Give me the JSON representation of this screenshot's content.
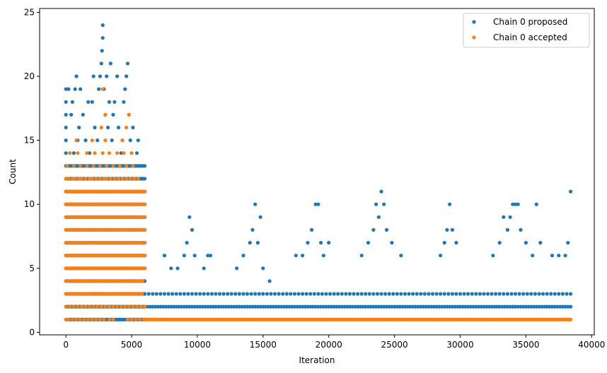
{
  "chart_data": {
    "type": "scatter",
    "xlabel": "Iteration",
    "ylabel": "Count",
    "xlim": [
      -2000,
      40200
    ],
    "ylim": [
      -0.2,
      25.3
    ],
    "xticks": [
      0,
      5000,
      10000,
      15000,
      20000,
      25000,
      30000,
      35000,
      40000
    ],
    "yticks": [
      0,
      5,
      10,
      15,
      20,
      25
    ],
    "legend_position": "top-right",
    "grid": false,
    "series": [
      {
        "name": "Chain 0 proposed",
        "color": "#1f77b4",
        "bands": [
          {
            "x_range": [
              0,
              6000
            ],
            "y_values": [
              1,
              2,
              3,
              4,
              5,
              6,
              7,
              8,
              9,
              10,
              11,
              12,
              13
            ],
            "step": 100
          },
          {
            "x_range": [
              6000,
              38400
            ],
            "y_values": [
              1,
              2
            ],
            "step": 200
          },
          {
            "x_range": [
              6000,
              38400
            ],
            "y_values": [
              3
            ],
            "step": 300
          }
        ],
        "points": [
          [
            0,
            14
          ],
          [
            0,
            15
          ],
          [
            0,
            16
          ],
          [
            0,
            17
          ],
          [
            0,
            18
          ],
          [
            0,
            19
          ],
          [
            200,
            19
          ],
          [
            400,
            17
          ],
          [
            500,
            18
          ],
          [
            600,
            14
          ],
          [
            700,
            19
          ],
          [
            800,
            20
          ],
          [
            900,
            15
          ],
          [
            1000,
            16
          ],
          [
            1100,
            19
          ],
          [
            1200,
            13
          ],
          [
            1300,
            17
          ],
          [
            1500,
            15
          ],
          [
            1700,
            18
          ],
          [
            1800,
            14
          ],
          [
            2000,
            18
          ],
          [
            2100,
            20
          ],
          [
            2200,
            16
          ],
          [
            2400,
            15
          ],
          [
            2500,
            19
          ],
          [
            2600,
            20
          ],
          [
            2700,
            21
          ],
          [
            2750,
            22
          ],
          [
            2800,
            24
          ],
          [
            2800,
            23
          ],
          [
            2900,
            19
          ],
          [
            3000,
            17
          ],
          [
            3100,
            20
          ],
          [
            3200,
            16
          ],
          [
            3300,
            18
          ],
          [
            3400,
            21
          ],
          [
            3500,
            15
          ],
          [
            3600,
            17
          ],
          [
            3700,
            18
          ],
          [
            3900,
            20
          ],
          [
            4000,
            16
          ],
          [
            4200,
            14
          ],
          [
            4300,
            15
          ],
          [
            4400,
            18
          ],
          [
            4500,
            19
          ],
          [
            4600,
            20
          ],
          [
            4700,
            21
          ],
          [
            4800,
            17
          ],
          [
            4900,
            15
          ],
          [
            5100,
            16
          ],
          [
            5400,
            14
          ],
          [
            5500,
            15
          ],
          [
            5700,
            12
          ],
          [
            5900,
            13
          ],
          [
            7500,
            6
          ],
          [
            8000,
            5
          ],
          [
            8500,
            5
          ],
          [
            9000,
            6
          ],
          [
            9200,
            7
          ],
          [
            9400,
            9
          ],
          [
            9600,
            8
          ],
          [
            9800,
            6
          ],
          [
            10500,
            5
          ],
          [
            10800,
            6
          ],
          [
            11000,
            6
          ],
          [
            13000,
            5
          ],
          [
            13500,
            6
          ],
          [
            14000,
            7
          ],
          [
            14200,
            8
          ],
          [
            14400,
            10
          ],
          [
            14600,
            7
          ],
          [
            14800,
            9
          ],
          [
            15000,
            5
          ],
          [
            15500,
            4
          ],
          [
            17500,
            6
          ],
          [
            18000,
            6
          ],
          [
            18400,
            7
          ],
          [
            18700,
            8
          ],
          [
            19000,
            10
          ],
          [
            19200,
            10
          ],
          [
            19400,
            7
          ],
          [
            19600,
            6
          ],
          [
            20000,
            7
          ],
          [
            22500,
            6
          ],
          [
            23000,
            7
          ],
          [
            23400,
            8
          ],
          [
            23600,
            10
          ],
          [
            23800,
            9
          ],
          [
            24000,
            11
          ],
          [
            24200,
            10
          ],
          [
            24400,
            8
          ],
          [
            24800,
            7
          ],
          [
            25500,
            6
          ],
          [
            28500,
            6
          ],
          [
            28800,
            7
          ],
          [
            29000,
            8
          ],
          [
            29200,
            10
          ],
          [
            29400,
            8
          ],
          [
            29700,
            7
          ],
          [
            32500,
            6
          ],
          [
            33000,
            7
          ],
          [
            33300,
            9
          ],
          [
            33600,
            8
          ],
          [
            33800,
            9
          ],
          [
            34000,
            10
          ],
          [
            34200,
            10
          ],
          [
            34400,
            10
          ],
          [
            34600,
            8
          ],
          [
            35000,
            7
          ],
          [
            35500,
            6
          ],
          [
            35800,
            10
          ],
          [
            36100,
            7
          ],
          [
            37000,
            6
          ],
          [
            37500,
            6
          ],
          [
            38000,
            6
          ],
          [
            38200,
            7
          ],
          [
            38400,
            11
          ]
        ]
      },
      {
        "name": "Chain 0 accepted",
        "color": "#ff7f0e",
        "bands": [
          {
            "x_range": [
              0,
              6000
            ],
            "y_values": [
              5,
              6,
              7,
              8,
              9,
              10,
              11
            ],
            "step": 100
          },
          {
            "x_range": [
              6000,
              38400
            ],
            "y_values": [
              1
            ],
            "step": 150
          }
        ],
        "points": [
          [
            0,
            1
          ],
          [
            200,
            1
          ],
          [
            500,
            1
          ],
          [
            800,
            1
          ],
          [
            1100,
            1
          ],
          [
            1400,
            1
          ],
          [
            1700,
            1
          ],
          [
            2000,
            1
          ],
          [
            2300,
            1
          ],
          [
            2600,
            1
          ],
          [
            2900,
            1
          ],
          [
            3300,
            1
          ],
          [
            3600,
            1
          ],
          [
            4700,
            1
          ],
          [
            5000,
            1
          ],
          [
            5300,
            1
          ],
          [
            5600,
            1
          ],
          [
            5900,
            1
          ],
          [
            0,
            2
          ],
          [
            300,
            2
          ],
          [
            600,
            2
          ],
          [
            900,
            2
          ],
          [
            1200,
            2
          ],
          [
            1500,
            2
          ],
          [
            1800,
            2
          ],
          [
            2100,
            2
          ],
          [
            2400,
            2
          ],
          [
            2700,
            2
          ],
          [
            3000,
            2
          ],
          [
            3300,
            2
          ],
          [
            3600,
            2
          ],
          [
            3900,
            2
          ],
          [
            4200,
            2
          ],
          [
            4500,
            2
          ],
          [
            4800,
            2
          ],
          [
            5100,
            2
          ],
          [
            5400,
            2
          ],
          [
            5700,
            2
          ],
          [
            6000,
            2
          ],
          [
            0,
            3
          ],
          [
            200,
            3
          ],
          [
            400,
            3
          ],
          [
            600,
            3
          ],
          [
            800,
            3
          ],
          [
            1000,
            3
          ],
          [
            1200,
            3
          ],
          [
            1400,
            3
          ],
          [
            1600,
            3
          ],
          [
            1800,
            3
          ],
          [
            2000,
            3
          ],
          [
            2200,
            3
          ],
          [
            2400,
            3
          ],
          [
            2600,
            3
          ],
          [
            2800,
            3
          ],
          [
            3000,
            3
          ],
          [
            3200,
            3
          ],
          [
            3400,
            3
          ],
          [
            3600,
            3
          ],
          [
            3800,
            3
          ],
          [
            4000,
            3
          ],
          [
            4200,
            3
          ],
          [
            4400,
            3
          ],
          [
            4600,
            3
          ],
          [
            4800,
            3
          ],
          [
            5000,
            3
          ],
          [
            5200,
            3
          ],
          [
            5400,
            3
          ],
          [
            5600,
            3
          ],
          [
            5800,
            3
          ],
          [
            0,
            4
          ],
          [
            150,
            4
          ],
          [
            300,
            4
          ],
          [
            450,
            4
          ],
          [
            600,
            4
          ],
          [
            750,
            4
          ],
          [
            900,
            4
          ],
          [
            1050,
            4
          ],
          [
            1200,
            4
          ],
          [
            1350,
            4
          ],
          [
            1500,
            4
          ],
          [
            1650,
            4
          ],
          [
            1800,
            4
          ],
          [
            1950,
            4
          ],
          [
            2100,
            4
          ],
          [
            2250,
            4
          ],
          [
            2400,
            4
          ],
          [
            2550,
            4
          ],
          [
            2700,
            4
          ],
          [
            2850,
            4
          ],
          [
            3000,
            4
          ],
          [
            3150,
            4
          ],
          [
            3300,
            4
          ],
          [
            3450,
            4
          ],
          [
            3600,
            4
          ],
          [
            3750,
            4
          ],
          [
            3900,
            4
          ],
          [
            4050,
            4
          ],
          [
            4200,
            4
          ],
          [
            4350,
            4
          ],
          [
            4500,
            4
          ],
          [
            4650,
            4
          ],
          [
            4800,
            4
          ],
          [
            4950,
            4
          ],
          [
            5100,
            4
          ],
          [
            5250,
            4
          ],
          [
            5400,
            4
          ],
          [
            5550,
            4
          ],
          [
            5700,
            4
          ],
          [
            5850,
            4
          ],
          [
            0,
            12
          ],
          [
            200,
            12
          ],
          [
            500,
            12
          ],
          [
            700,
            12
          ],
          [
            1000,
            12
          ],
          [
            1200,
            12
          ],
          [
            1500,
            12
          ],
          [
            1800,
            12
          ],
          [
            2000,
            12
          ],
          [
            2300,
            12
          ],
          [
            2600,
            12
          ],
          [
            2900,
            12
          ],
          [
            3100,
            12
          ],
          [
            3400,
            12
          ],
          [
            3700,
            12
          ],
          [
            4000,
            12
          ],
          [
            4300,
            12
          ],
          [
            4600,
            12
          ],
          [
            4900,
            12
          ],
          [
            5200,
            12
          ],
          [
            5500,
            12
          ],
          [
            100,
            13
          ],
          [
            600,
            13
          ],
          [
            1100,
            13
          ],
          [
            1600,
            13
          ],
          [
            2100,
            13
          ],
          [
            2600,
            13
          ],
          [
            3100,
            13
          ],
          [
            3600,
            13
          ],
          [
            4100,
            13
          ],
          [
            4600,
            13
          ],
          [
            5100,
            13
          ],
          [
            300,
            14
          ],
          [
            900,
            14
          ],
          [
            1600,
            14
          ],
          [
            2200,
            14
          ],
          [
            2800,
            14
          ],
          [
            3300,
            14
          ],
          [
            3900,
            14
          ],
          [
            4400,
            14
          ],
          [
            5000,
            14
          ],
          [
            800,
            15
          ],
          [
            2000,
            15
          ],
          [
            3000,
            15
          ],
          [
            4300,
            15
          ],
          [
            2700,
            16
          ],
          [
            4600,
            16
          ],
          [
            3000,
            17
          ],
          [
            4800,
            17
          ],
          [
            2800,
            19
          ]
        ]
      }
    ]
  }
}
